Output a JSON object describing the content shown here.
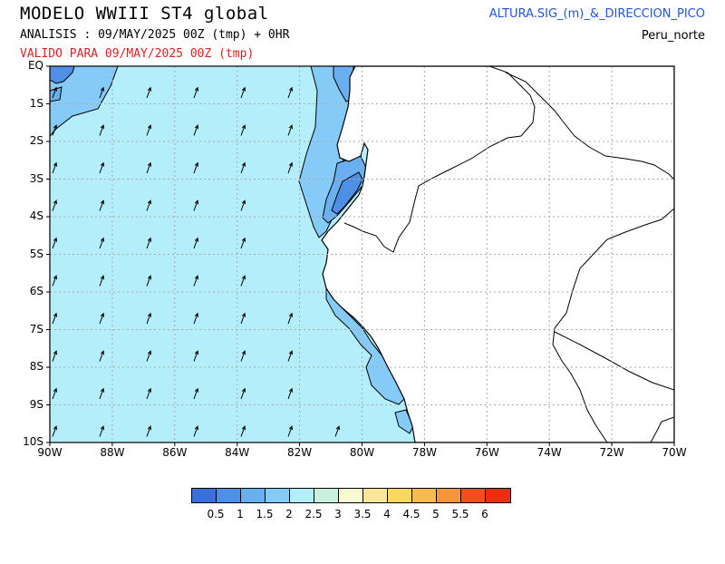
{
  "header": {
    "title": "MODELO WWIII ST4 global",
    "analysis": "ANALISIS : 09/MAY/2025 00Z  (tmp) + 0HR",
    "valid": "VALIDO PARA  09/MAY/2025 00Z  (tmp)",
    "parameter": "ALTURA.SIG_(m)_&_DIRECCION_PICO",
    "region": "Peru_norte"
  },
  "colors": {
    "ocean_base": "#b4eefa",
    "coast_band": "#86cbf7",
    "mid_band": "#6ab0f0",
    "low_band": "#4f8fe6",
    "land": "#ffffff",
    "grid": "#aaaaaa"
  },
  "map": {
    "lat_labels": [
      "EQ",
      "1S",
      "2S",
      "3S",
      "4S",
      "5S",
      "6S",
      "7S",
      "8S",
      "9S",
      "10S"
    ],
    "lon_labels": [
      "90W",
      "88W",
      "86W",
      "84W",
      "82W",
      "80W",
      "78W",
      "76W",
      "74W",
      "72W",
      "70W"
    ],
    "lat_range": [
      0,
      -10
    ],
    "lon_range": [
      -90,
      -70
    ],
    "wave_direction_deg_from": 200
  },
  "legend": {
    "labels": [
      "0.5",
      "1",
      "1.5",
      "2",
      "2.5",
      "3",
      "3.5",
      "4",
      "4.5",
      "5",
      "5.5",
      "6"
    ],
    "colors": [
      "#3a6ed8",
      "#4f8fe6",
      "#6ab0f0",
      "#86cbf7",
      "#b4eefa",
      "#c8f0dc",
      "#fafad2",
      "#fae69a",
      "#f8d860",
      "#f6bc50",
      "#f6963a",
      "#f0501e",
      "#e83010"
    ]
  }
}
